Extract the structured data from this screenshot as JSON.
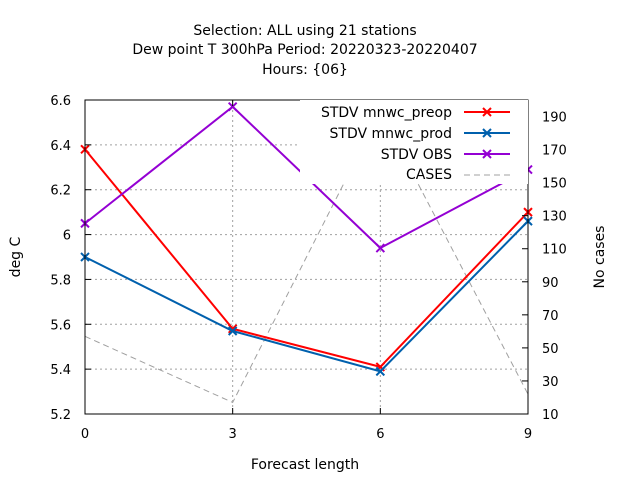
{
  "chart_data": {
    "type": "line",
    "title_lines": [
      "Selection: ALL using    21 stations",
      "Dew point T 300hPa   Period: 20220323-20220407",
      "Hours: {06}"
    ],
    "xlabel": "Forecast length",
    "ylabel": "deg C",
    "y2label": "No cases",
    "x": [
      0,
      3,
      6,
      9
    ],
    "xlim": [
      0,
      9
    ],
    "ylim": [
      5.2,
      6.6
    ],
    "y2lim": [
      10,
      200
    ],
    "xticks": [
      "0",
      "3",
      "6",
      "9"
    ],
    "yticks": [
      "5.2",
      "5.4",
      "5.6",
      "5.8",
      "6",
      "6.2",
      "6.4",
      "6.6"
    ],
    "y2ticks": [
      "10",
      "30",
      "50",
      "70",
      "90",
      "110",
      "130",
      "150",
      "170",
      "190"
    ],
    "grid": true,
    "legend_position": "top-right",
    "series": [
      {
        "name": "STDV mnwc_preop",
        "values": [
          6.38,
          5.58,
          5.41,
          6.1
        ],
        "color": "#ff0000",
        "marker": "x",
        "axis": "left"
      },
      {
        "name": "STDV mnwc_prod",
        "values": [
          5.9,
          5.57,
          5.39,
          6.06
        ],
        "color": "#0060ad",
        "marker": "x",
        "axis": "left"
      },
      {
        "name": "STDV OBS",
        "values": [
          6.05,
          6.57,
          5.94,
          6.29
        ],
        "color": "#9400d3",
        "marker": "x",
        "axis": "left"
      },
      {
        "name": "CASES",
        "values": [
          57,
          17,
          193,
          22
        ],
        "color": "#a0a0a0",
        "dash": true,
        "axis": "right"
      }
    ]
  }
}
